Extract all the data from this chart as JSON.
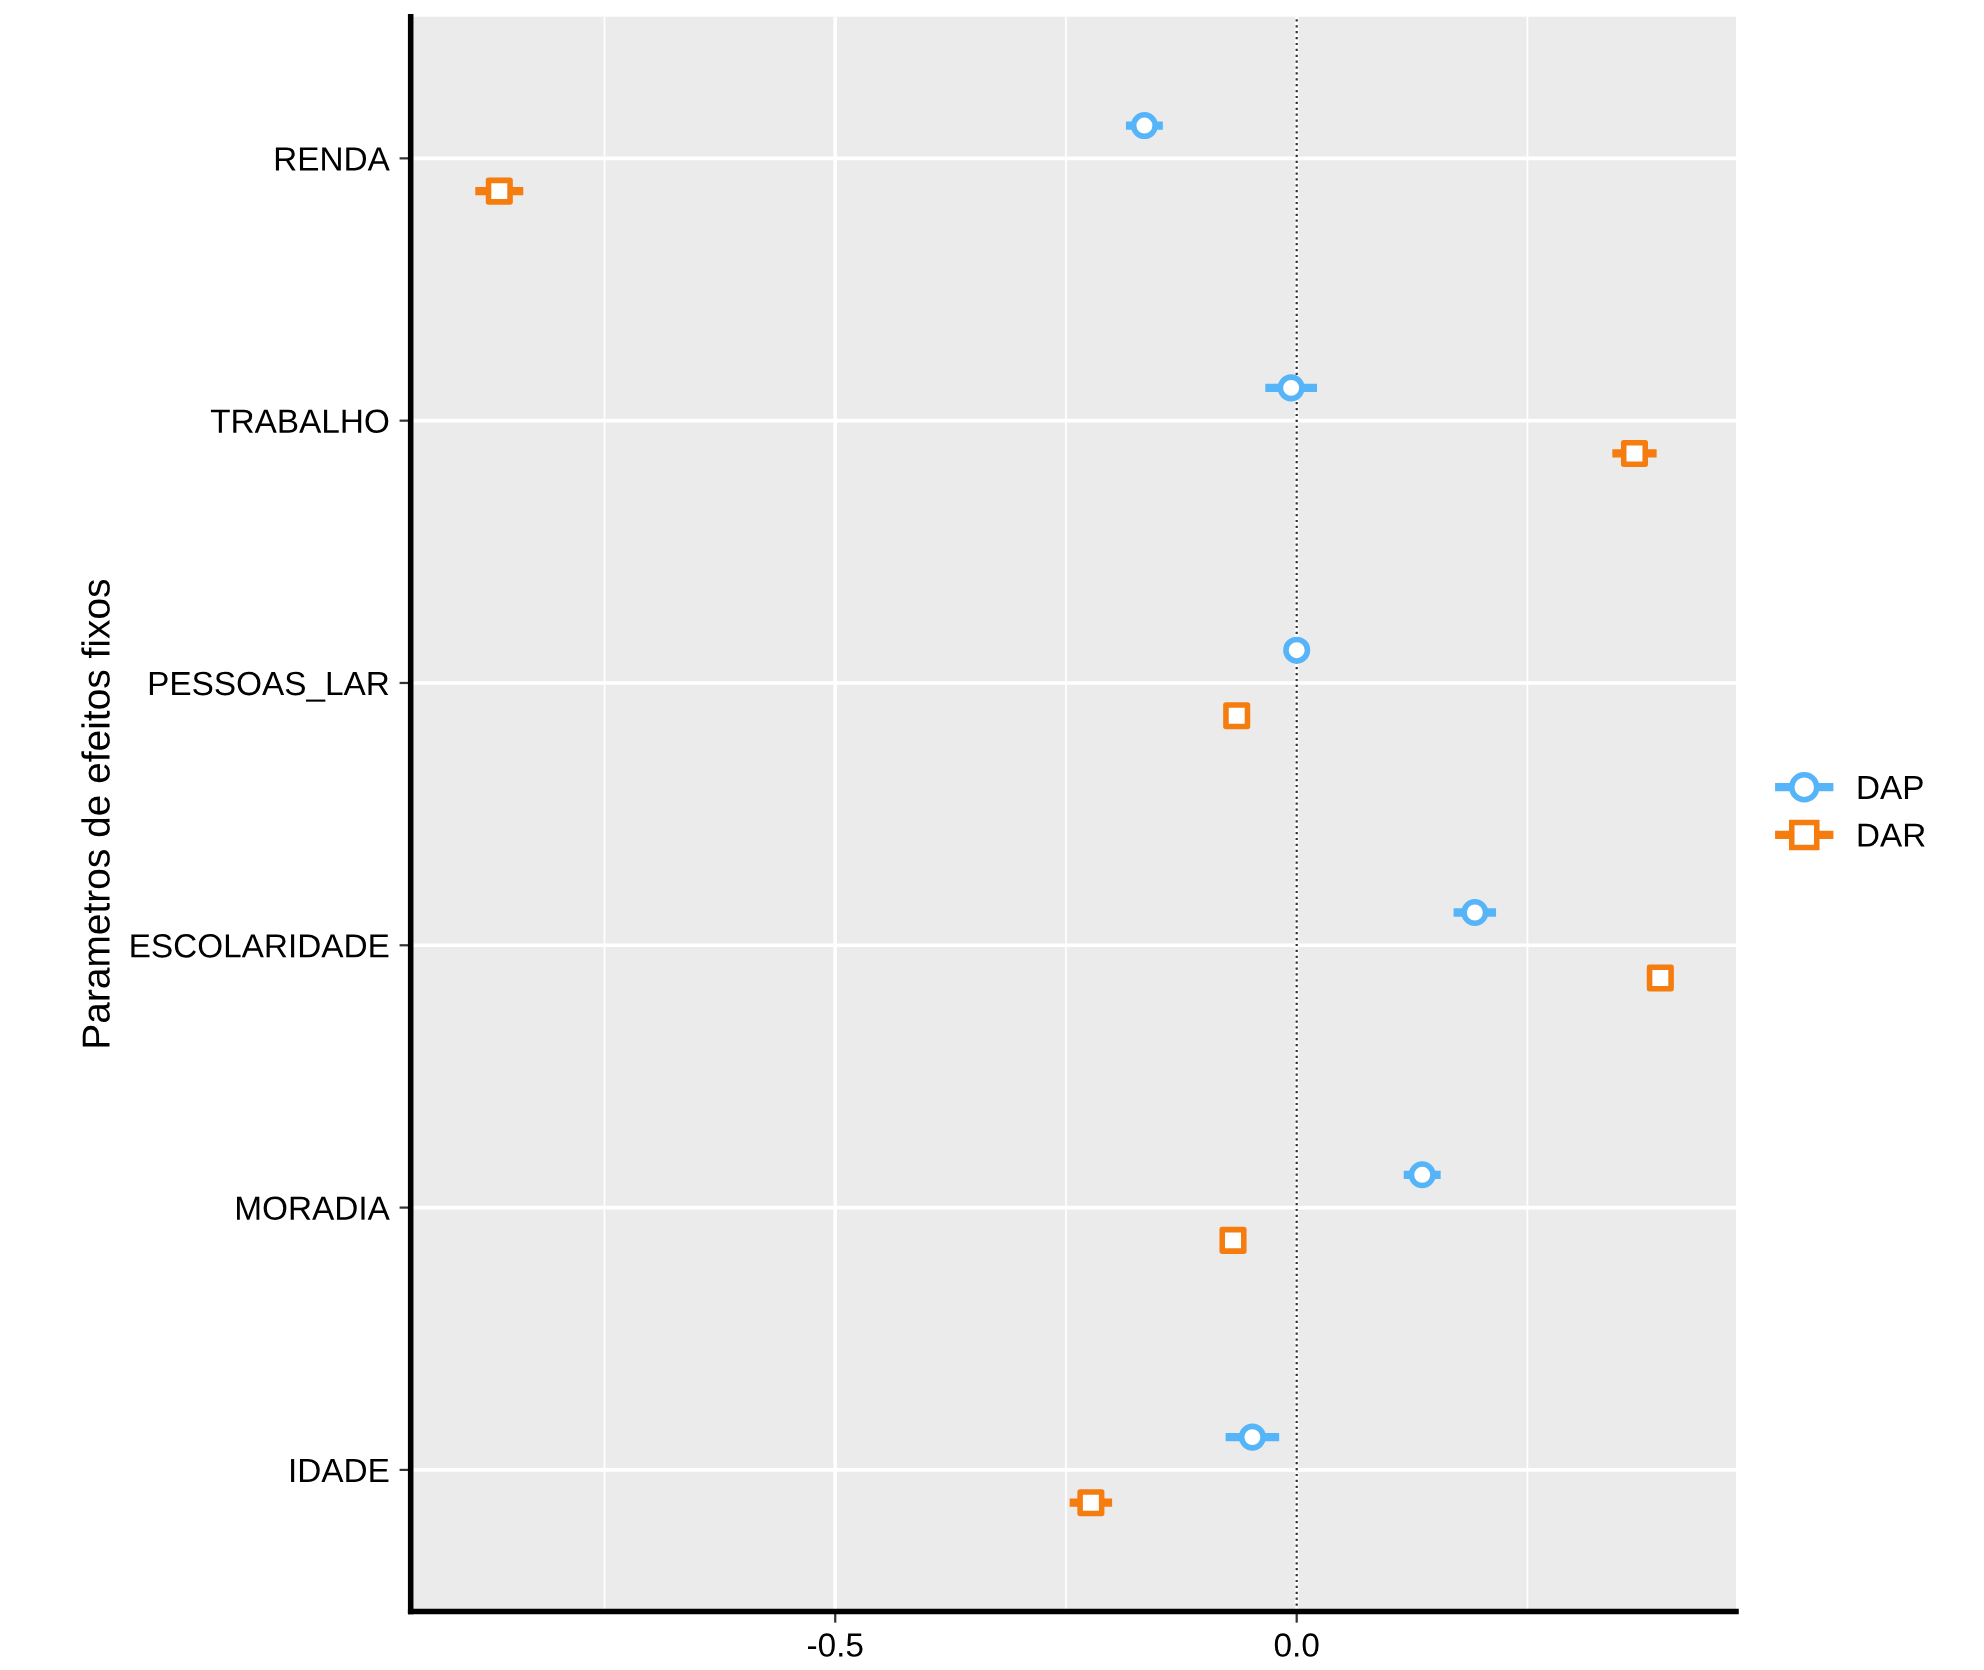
{
  "chart_data": {
    "type": "scatter",
    "orientation": "horizontal",
    "ylabel": "Parametros de efeitos fixos",
    "categories": [
      "RENDA",
      "TRABALHO",
      "PESSOAS_LAR",
      "ESCOLARIDADE",
      "MORADIA",
      "IDADE"
    ],
    "series": [
      {
        "name": "DAP",
        "color": "#56b4f9",
        "marker": "circle",
        "values": [
          -0.165,
          -0.006,
          0.0,
          0.193,
          0.136,
          -0.048
        ],
        "errors": [
          0.02,
          0.028,
          0.008,
          0.023,
          0.02,
          0.029
        ]
      },
      {
        "name": "DAR",
        "color": "#f57c0e",
        "marker": "square",
        "values": [
          -0.864,
          0.366,
          -0.065,
          0.394,
          -0.069,
          -0.223
        ],
        "errors": [
          0.026,
          0.024,
          0.008,
          0.01,
          0.012,
          0.023
        ]
      }
    ],
    "xlim": [
      -0.96,
      0.476
    ],
    "xticks": [
      {
        "value": -0.5,
        "label": "-0.5"
      },
      {
        "value": 0,
        "label": "0.0"
      }
    ],
    "ref_lines": [
      {
        "axis": "x",
        "value": 0,
        "line_style": "dotted",
        "color": "#333333"
      }
    ],
    "grid": true,
    "legend": "right"
  }
}
